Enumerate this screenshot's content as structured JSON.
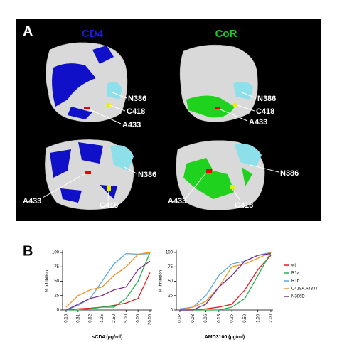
{
  "panel_a": {
    "label": "A",
    "titles": [
      "CD4",
      "CoR"
    ],
    "annotations": [
      "N386",
      "C418",
      "A433",
      "N386",
      "C418",
      "A433",
      "N386",
      "A433",
      "C418",
      "N386",
      "A433",
      "C418"
    ]
  },
  "panel_b": {
    "label": "B"
  },
  "chart_data": [
    {
      "type": "line",
      "x_label": "sCD4 (µg/ml)",
      "y_label": "% Inhibition",
      "categories": [
        "0.16",
        "0.31",
        "0.62",
        "1.25",
        "2.50",
        "5.00",
        "10.00",
        "20.00"
      ],
      "ylim": [
        0,
        100
      ],
      "yticks": [
        0,
        25,
        50,
        75,
        100
      ],
      "series": [
        {
          "color": "#e41a1c",
          "values": [
            0,
            2,
            3,
            5,
            8,
            12,
            20,
            65
          ]
        },
        {
          "color": "#22b14c",
          "values": [
            0,
            0,
            2,
            5,
            5,
            20,
            50,
            100
          ]
        },
        {
          "color": "#5aa9e6",
          "values": [
            0,
            8,
            20,
            50,
            80,
            98,
            97,
            98
          ]
        },
        {
          "color": "#f39323",
          "values": [
            5,
            25,
            35,
            40,
            60,
            75,
            97,
            100
          ]
        },
        {
          "color": "#7b2d8e",
          "values": [
            0,
            10,
            20,
            25,
            35,
            40,
            70,
            85
          ]
        }
      ]
    },
    {
      "type": "line",
      "x_label": "AMD3100 (µg/ml)",
      "y_label": "% Inhibition",
      "categories": [
        "0.02",
        "0.03",
        "0.06",
        "0.13",
        "0.25",
        "0.50",
        "1.00",
        "2.00"
      ],
      "ylim": [
        0,
        100
      ],
      "yticks": [
        0,
        25,
        50,
        75,
        100
      ],
      "legend": "right",
      "series": [
        {
          "name": "wt",
          "color": "#e41a1c",
          "values": [
            0,
            0,
            2,
            5,
            10,
            35,
            70,
            95
          ]
        },
        {
          "name": "R1a",
          "color": "#22b14c",
          "values": [
            0,
            0,
            0,
            0,
            5,
            20,
            60,
            100
          ]
        },
        {
          "name": "R1b",
          "color": "#5aa9e6",
          "values": [
            2,
            5,
            25,
            60,
            80,
            85,
            95,
            100
          ]
        },
        {
          "name": "C418A A433T",
          "color": "#f39323",
          "values": [
            0,
            5,
            15,
            40,
            75,
            80,
            90,
            100
          ]
        },
        {
          "name": "N386D",
          "color": "#7b2d8e",
          "values": [
            0,
            0,
            10,
            40,
            60,
            85,
            95,
            98
          ]
        }
      ]
    }
  ]
}
